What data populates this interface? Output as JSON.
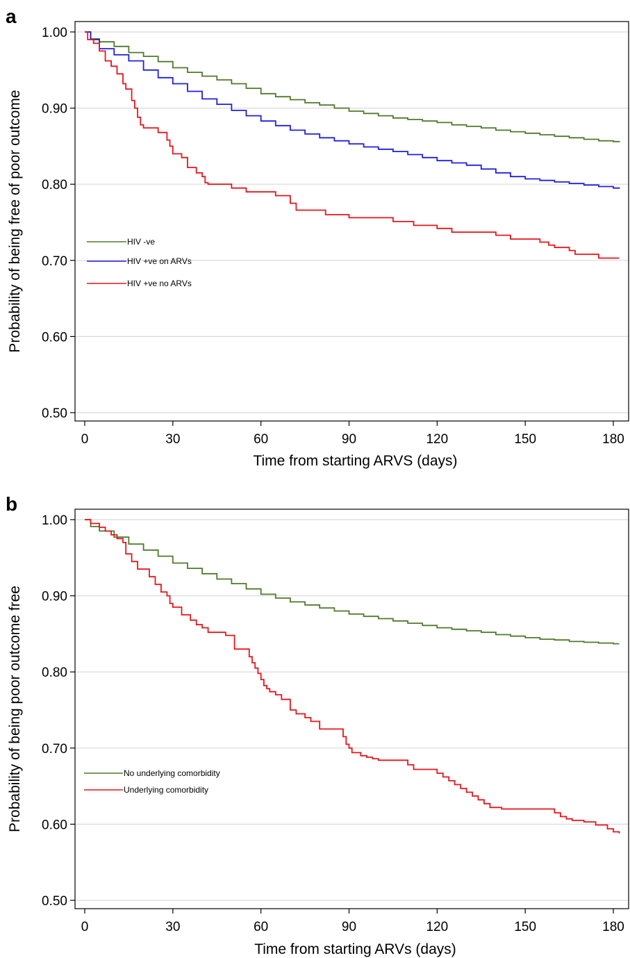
{
  "chart_data": [
    {
      "type": "line",
      "step": true,
      "panel_label": "a",
      "title": "",
      "xlabel": "Time from starting ARVS (days)",
      "ylabel": "Probability of being free of poor outcome",
      "xlim": [
        0,
        183
      ],
      "ylim": [
        0.49,
        1.014
      ],
      "xticks": [
        "0",
        "30",
        "60",
        "90",
        "120",
        "150",
        "180"
      ],
      "yticks": [
        "0.50",
        "0.60",
        "0.70",
        "0.80",
        "0.90",
        "1.00"
      ],
      "grid": true,
      "legend_position": "left-middle",
      "series": [
        {
          "name": "HIV -ve",
          "color": "#4e7a2a",
          "x": [
            0,
            2,
            5,
            10,
            15,
            20,
            25,
            30,
            35,
            40,
            45,
            50,
            55,
            60,
            65,
            70,
            75,
            80,
            85,
            90,
            95,
            100,
            105,
            110,
            115,
            120,
            125,
            130,
            135,
            140,
            145,
            150,
            155,
            160,
            165,
            170,
            175,
            180,
            182
          ],
          "y": [
            1.0,
            0.991,
            0.987,
            0.981,
            0.973,
            0.968,
            0.961,
            0.953,
            0.947,
            0.942,
            0.937,
            0.932,
            0.926,
            0.919,
            0.915,
            0.911,
            0.907,
            0.904,
            0.9,
            0.896,
            0.893,
            0.89,
            0.887,
            0.885,
            0.883,
            0.881,
            0.878,
            0.876,
            0.874,
            0.871,
            0.869,
            0.867,
            0.865,
            0.863,
            0.861,
            0.859,
            0.857,
            0.856,
            0.855
          ]
        },
        {
          "name": "HIV +ve on ARVs",
          "color": "#1f1fe0",
          "x": [
            0,
            2,
            5,
            10,
            15,
            20,
            25,
            30,
            35,
            40,
            45,
            50,
            55,
            60,
            65,
            70,
            75,
            80,
            85,
            90,
            95,
            100,
            105,
            110,
            115,
            120,
            125,
            130,
            135,
            140,
            145,
            150,
            155,
            160,
            165,
            170,
            175,
            180,
            182
          ],
          "y": [
            1.0,
            0.99,
            0.978,
            0.97,
            0.962,
            0.95,
            0.94,
            0.932,
            0.922,
            0.912,
            0.905,
            0.897,
            0.89,
            0.883,
            0.877,
            0.871,
            0.866,
            0.861,
            0.857,
            0.853,
            0.849,
            0.846,
            0.843,
            0.839,
            0.835,
            0.831,
            0.828,
            0.825,
            0.82,
            0.815,
            0.81,
            0.807,
            0.805,
            0.803,
            0.801,
            0.799,
            0.797,
            0.795,
            0.794
          ]
        },
        {
          "name": "HIV +ve no ARVs",
          "color": "#e8141b",
          "x": [
            0,
            1,
            3,
            5,
            7,
            9,
            11,
            13,
            14,
            16,
            17,
            18,
            19,
            20,
            25,
            28,
            29,
            30,
            33,
            35,
            38,
            40,
            41,
            42,
            50,
            55,
            65,
            70,
            72,
            80,
            82,
            90,
            95,
            100,
            105,
            110,
            112,
            115,
            120,
            125,
            130,
            135,
            140,
            145,
            150,
            155,
            158,
            160,
            165,
            167,
            170,
            175,
            180,
            182
          ],
          "y": [
            1.0,
            0.99,
            0.985,
            0.975,
            0.962,
            0.955,
            0.945,
            0.932,
            0.925,
            0.91,
            0.9,
            0.888,
            0.878,
            0.874,
            0.868,
            0.858,
            0.85,
            0.84,
            0.835,
            0.822,
            0.815,
            0.81,
            0.802,
            0.8,
            0.795,
            0.79,
            0.785,
            0.775,
            0.766,
            0.766,
            0.76,
            0.756,
            0.756,
            0.756,
            0.751,
            0.751,
            0.746,
            0.746,
            0.742,
            0.737,
            0.737,
            0.737,
            0.733,
            0.728,
            0.728,
            0.724,
            0.72,
            0.717,
            0.713,
            0.708,
            0.708,
            0.703,
            0.703,
            0.703
          ]
        }
      ]
    },
    {
      "type": "line",
      "step": true,
      "panel_label": "b",
      "title": "",
      "xlabel": "Time from starting ARVs (days)",
      "ylabel": "Probability of being poor outcome free",
      "xlim": [
        0,
        183
      ],
      "ylim": [
        0.49,
        1.014
      ],
      "xticks": [
        "0",
        "30",
        "60",
        "90",
        "120",
        "150",
        "180"
      ],
      "yticks": [
        "0.50",
        "0.60",
        "0.70",
        "0.80",
        "0.90",
        "1.00"
      ],
      "grid": true,
      "legend_position": "left-bottom",
      "series": [
        {
          "name": "No underlying comorbidity",
          "color": "#4e7a2a",
          "x": [
            0,
            2,
            5,
            10,
            15,
            20,
            25,
            30,
            35,
            40,
            45,
            50,
            55,
            60,
            65,
            70,
            75,
            80,
            85,
            90,
            95,
            100,
            105,
            110,
            115,
            120,
            125,
            130,
            135,
            140,
            145,
            150,
            155,
            160,
            165,
            170,
            175,
            180,
            182
          ],
          "y": [
            1.0,
            0.991,
            0.985,
            0.977,
            0.968,
            0.96,
            0.952,
            0.943,
            0.936,
            0.929,
            0.922,
            0.916,
            0.909,
            0.902,
            0.897,
            0.892,
            0.888,
            0.884,
            0.88,
            0.876,
            0.873,
            0.87,
            0.867,
            0.864,
            0.861,
            0.858,
            0.856,
            0.854,
            0.852,
            0.849,
            0.847,
            0.845,
            0.843,
            0.842,
            0.84,
            0.839,
            0.838,
            0.837,
            0.837
          ]
        },
        {
          "name": "Underlying comorbidity",
          "color": "#e8141b",
          "x": [
            0,
            2,
            5,
            7,
            9,
            11,
            13,
            14,
            16,
            18,
            22,
            24,
            26,
            28,
            29,
            30,
            33,
            36,
            38,
            40,
            42,
            48,
            51,
            56,
            57,
            58,
            59,
            60,
            61,
            62,
            63,
            65,
            67,
            70,
            72,
            75,
            77,
            80,
            88,
            89,
            90,
            91,
            94,
            96,
            98,
            100,
            105,
            110,
            112,
            115,
            120,
            122,
            124,
            126,
            128,
            130,
            132,
            134,
            136,
            138,
            142,
            150,
            155,
            160,
            162,
            164,
            166,
            170,
            174,
            178,
            180,
            182
          ],
          "y": [
            1.0,
            0.995,
            0.99,
            0.985,
            0.98,
            0.975,
            0.97,
            0.955,
            0.945,
            0.935,
            0.925,
            0.915,
            0.905,
            0.9,
            0.89,
            0.885,
            0.875,
            0.868,
            0.862,
            0.858,
            0.852,
            0.848,
            0.83,
            0.82,
            0.812,
            0.805,
            0.798,
            0.79,
            0.782,
            0.778,
            0.774,
            0.77,
            0.764,
            0.75,
            0.745,
            0.74,
            0.735,
            0.725,
            0.715,
            0.705,
            0.7,
            0.694,
            0.69,
            0.688,
            0.686,
            0.684,
            0.684,
            0.678,
            0.672,
            0.672,
            0.667,
            0.662,
            0.657,
            0.652,
            0.647,
            0.642,
            0.637,
            0.632,
            0.627,
            0.622,
            0.62,
            0.62,
            0.62,
            0.615,
            0.61,
            0.607,
            0.605,
            0.603,
            0.599,
            0.594,
            0.59,
            0.588
          ]
        }
      ]
    }
  ]
}
